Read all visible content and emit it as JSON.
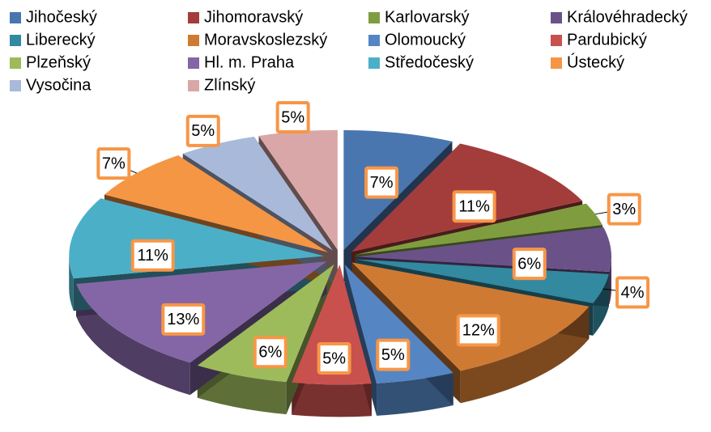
{
  "chart_data": {
    "type": "pie",
    "categories": [
      "Jihočeský",
      "Jihomoravský",
      "Karlovarský",
      "Královéhradecký",
      "Liberecký",
      "Moravskoslezský",
      "Olomoucký",
      "Pardubický",
      "Plzeňský",
      "Hl. m. Praha",
      "Středočeský",
      "Ústecký",
      "Vysočina",
      "Zlínský"
    ],
    "values": [
      7,
      11,
      3,
      6,
      4,
      12,
      5,
      5,
      6,
      13,
      11,
      7,
      5,
      5
    ],
    "value_labels": [
      "7%",
      "11%",
      "3%",
      "6%",
      "4%",
      "12%",
      "5%",
      "5%",
      "6%",
      "13%",
      "11%",
      "7%",
      "5%",
      "5%"
    ],
    "colors": [
      "#4a76b0",
      "#a33d3b",
      "#7f9d3f",
      "#6a5289",
      "#33899f",
      "#cf7a33",
      "#5585c3",
      "#c8514e",
      "#9dbb5b",
      "#8466a6",
      "#4cafc8",
      "#f59645",
      "#a9b9da",
      "#d9a7a7"
    ],
    "legend": "top"
  }
}
